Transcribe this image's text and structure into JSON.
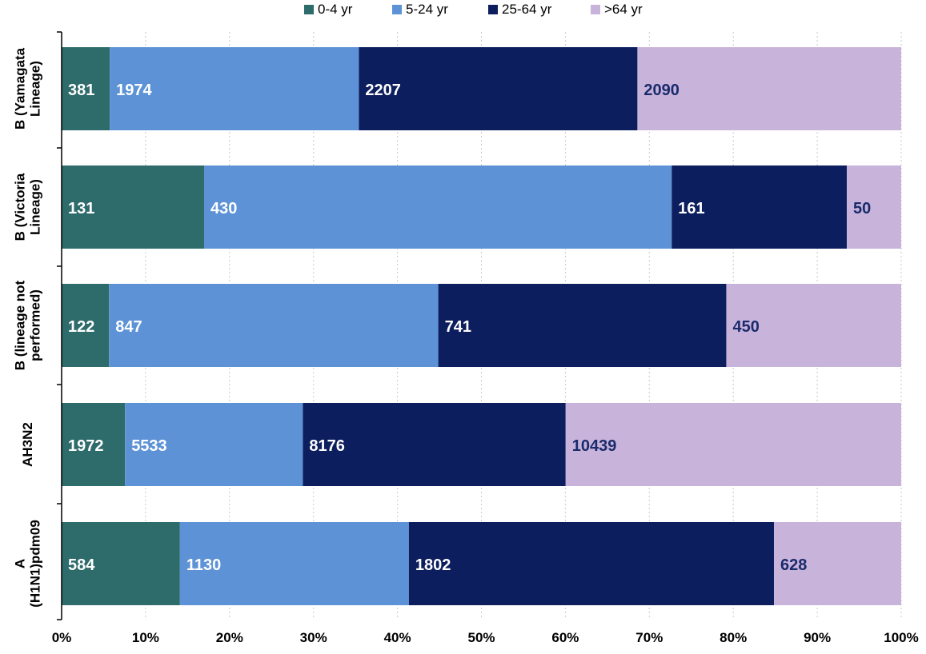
{
  "chart_data": {
    "type": "bar",
    "orientation": "horizontal",
    "stacked": "percent",
    "categories": [
      "B (Yamagata Lineage)",
      "B (Victoria Lineage)",
      "B (lineage not performed)",
      "AH3N2",
      "A (H1N1)pdm09"
    ],
    "category_label_lines": [
      [
        "B (Yamagata",
        "Lineage)"
      ],
      [
        "B (Victoria",
        "Lineage)"
      ],
      [
        "B (lineage not",
        "performed)"
      ],
      [
        "AH3N2"
      ],
      [
        "A",
        "(H1N1)pdm09"
      ]
    ],
    "series": [
      {
        "name": "0-4 yr",
        "values": [
          381,
          131,
          122,
          1972,
          584
        ]
      },
      {
        "name": "5-24 yr",
        "values": [
          1974,
          430,
          847,
          5533,
          1130
        ]
      },
      {
        "name": "25-64 yr",
        "values": [
          2207,
          161,
          741,
          8176,
          1802
        ]
      },
      {
        "name": ">64 yr",
        "values": [
          2090,
          50,
          450,
          10439,
          628
        ]
      }
    ],
    "colors": [
      "#2e6b6b",
      "#5d93d6",
      "#0d1e5e",
      "#c8b3db"
    ],
    "label_colors": [
      "#ffffff",
      "#ffffff",
      "#ffffff",
      "#1a2b6b"
    ],
    "xlim": [
      0,
      100
    ],
    "x_ticks": [
      "0%",
      "10%",
      "20%",
      "30%",
      "40%",
      "50%",
      "60%",
      "70%",
      "80%",
      "90%",
      "100%"
    ],
    "grid": true,
    "legend_position": "top",
    "title": "",
    "xlabel": "",
    "ylabel": ""
  }
}
